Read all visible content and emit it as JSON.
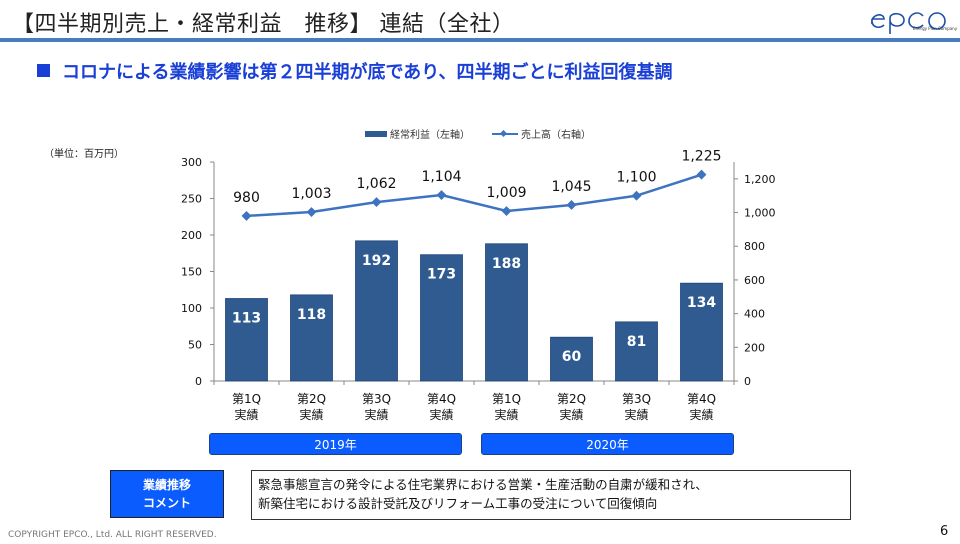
{
  "header": {
    "title": "【四半期別売上・経常利益　推移】 連結（全社）",
    "logo_text": "epco",
    "logo_tagline": "Energy Plan Company"
  },
  "subtitle": "コロナによる業績影響は第２四半期が底であり、四半期ごとに利益回復基調",
  "unit_label": "（単位：百万円）",
  "chart_data": {
    "type": "bar",
    "title": "",
    "categories": [
      "第1Q 実績",
      "第2Q 実績",
      "第3Q 実績",
      "第4Q 実績",
      "第1Q 実績",
      "第2Q 実績",
      "第3Q 実績",
      "第4Q 実績"
    ],
    "category_lines": [
      [
        "第1Q",
        "実績"
      ],
      [
        "第2Q",
        "実績"
      ],
      [
        "第3Q",
        "実績"
      ],
      [
        "第4Q",
        "実績"
      ],
      [
        "第1Q",
        "実績"
      ],
      [
        "第2Q",
        "実績"
      ],
      [
        "第3Q",
        "実績"
      ],
      [
        "第4Q",
        "実績"
      ]
    ],
    "groups": [
      {
        "label": "2019年",
        "categories": [
          0,
          1,
          2,
          3
        ]
      },
      {
        "label": "2020年",
        "categories": [
          4,
          5,
          6,
          7
        ]
      }
    ],
    "series": [
      {
        "name": "経常利益（左軸）",
        "type": "bar",
        "axis": "left",
        "color": "#2f5b91",
        "values": [
          113,
          118,
          192,
          173,
          188,
          60,
          81,
          134
        ],
        "labels": [
          "113",
          "118",
          "192",
          "173",
          "188",
          "60",
          "81",
          "134"
        ]
      },
      {
        "name": "売上高（右軸）",
        "type": "line",
        "axis": "right",
        "color": "#3d73c0",
        "values": [
          980,
          1003,
          1062,
          1104,
          1009,
          1045,
          1100,
          1225
        ],
        "labels": [
          "980",
          "1,003",
          "1,062",
          "1,104",
          "1,009",
          "1,045",
          "1,100",
          "1,225"
        ]
      }
    ],
    "left_axis": {
      "min": 0,
      "max": 300,
      "ticks": [
        0,
        50,
        100,
        150,
        200,
        250,
        300
      ],
      "tick_labels": [
        "0",
        "50",
        "100",
        "150",
        "200",
        "250",
        "300"
      ]
    },
    "right_axis": {
      "min": 0,
      "max": 1300,
      "ticks": [
        0,
        200,
        400,
        600,
        800,
        1000,
        1200
      ],
      "tick_labels": [
        "0",
        "200",
        "400",
        "600",
        "800",
        "1,000",
        "1,200"
      ]
    },
    "legend_position": "top-center",
    "grid": false
  },
  "comment": {
    "label_line1": "業績推移",
    "label_line2": "コメント",
    "text_line1": "緊急事態宣言の発令による住宅業界における営業・生産活動の自粛が緩和され、",
    "text_line2": "新築住宅における設計受託及びリフォーム工事の受注について回復傾向"
  },
  "footer": {
    "copyright": "COPYRIGHT EPCO., Ltd. ALL RIGHT RESERVED.",
    "page_number": "6"
  }
}
